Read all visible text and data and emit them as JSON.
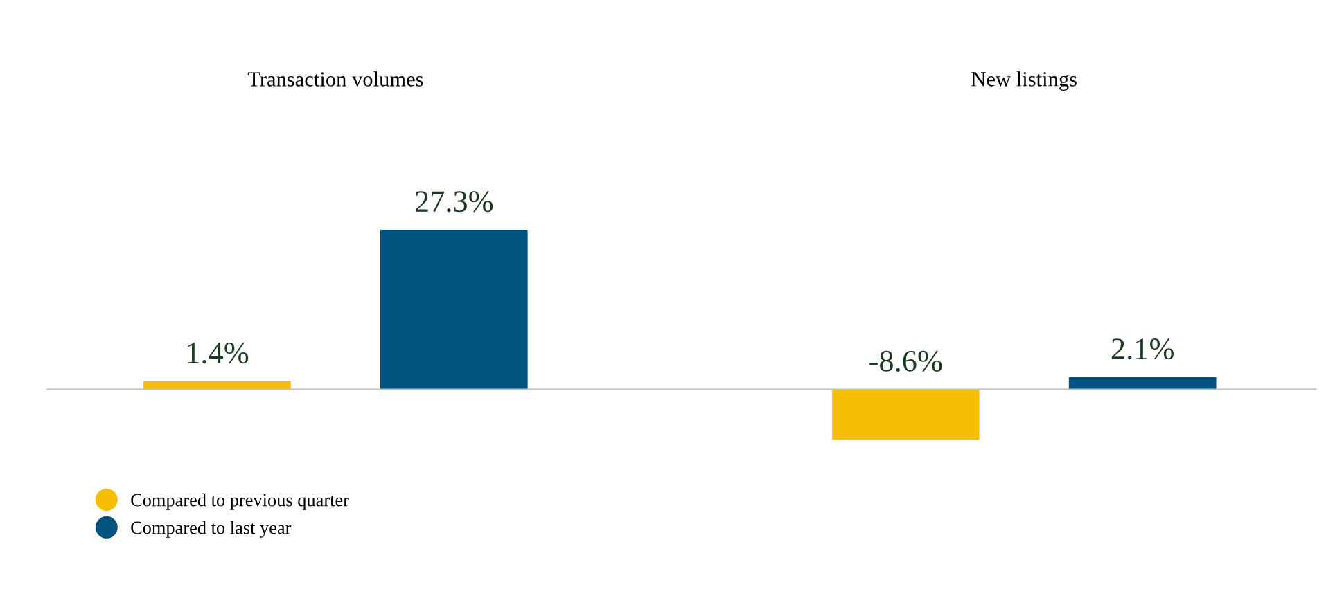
{
  "chart_data": {
    "type": "bar",
    "categories": [
      "Transaction volumes",
      "New listings"
    ],
    "series": [
      {
        "name": "Compared to previous quarter",
        "color": "#f5be00",
        "values": [
          1.4,
          -8.6
        ],
        "value_labels": [
          "1.4%",
          "-8.6%"
        ]
      },
      {
        "name": "Compared to last year",
        "color": "#00527f",
        "values": [
          27.3,
          2.1
        ],
        "value_labels": [
          "27.3%",
          "2.1%"
        ]
      }
    ],
    "legend": "bottom left",
    "grid": false
  }
}
